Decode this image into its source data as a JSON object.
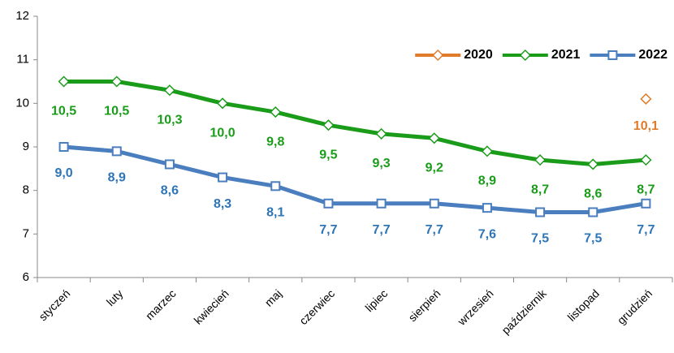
{
  "chart_data": {
    "type": "line",
    "categories": [
      "styczeń",
      "luty",
      "marzec",
      "kwiecień",
      "maj",
      "czerwiec",
      "lipiec",
      "sierpień",
      "wrzesień",
      "październik",
      "listopad",
      "grudzień"
    ],
    "series": [
      {
        "name": "2020",
        "color": "#e07b2a",
        "marker": "diamond",
        "values": [
          null,
          null,
          null,
          null,
          null,
          null,
          null,
          null,
          null,
          null,
          null,
          10.1
        ],
        "value_labels": [
          null,
          null,
          null,
          null,
          null,
          null,
          null,
          null,
          null,
          null,
          null,
          "10,1"
        ]
      },
      {
        "name": "2021",
        "color": "#1a9c1a",
        "marker": "diamond",
        "values": [
          10.5,
          10.5,
          10.3,
          10.0,
          9.8,
          9.5,
          9.3,
          9.2,
          8.9,
          8.7,
          8.6,
          8.7
        ],
        "value_labels": [
          "10,5",
          "10,5",
          "10,3",
          "10,0",
          "9,8",
          "9,5",
          "9,3",
          "9,2",
          "8,9",
          "8,7",
          "8,6",
          "8,7"
        ]
      },
      {
        "name": "2022",
        "color": "#4a7ebf",
        "marker": "square",
        "values": [
          9.0,
          8.9,
          8.6,
          8.3,
          8.1,
          7.7,
          7.7,
          7.7,
          7.6,
          7.5,
          7.5,
          7.7
        ],
        "value_labels": [
          "9,0",
          "8,9",
          "8,6",
          "8,3",
          "8,1",
          "7,7",
          "7,7",
          "7,7",
          "7,6",
          "7,5",
          "7,5",
          "7,7"
        ]
      }
    ],
    "ylim": [
      6,
      12
    ],
    "yticks": [
      6,
      7,
      8,
      9,
      10,
      11,
      12
    ],
    "legend": "top-right"
  }
}
